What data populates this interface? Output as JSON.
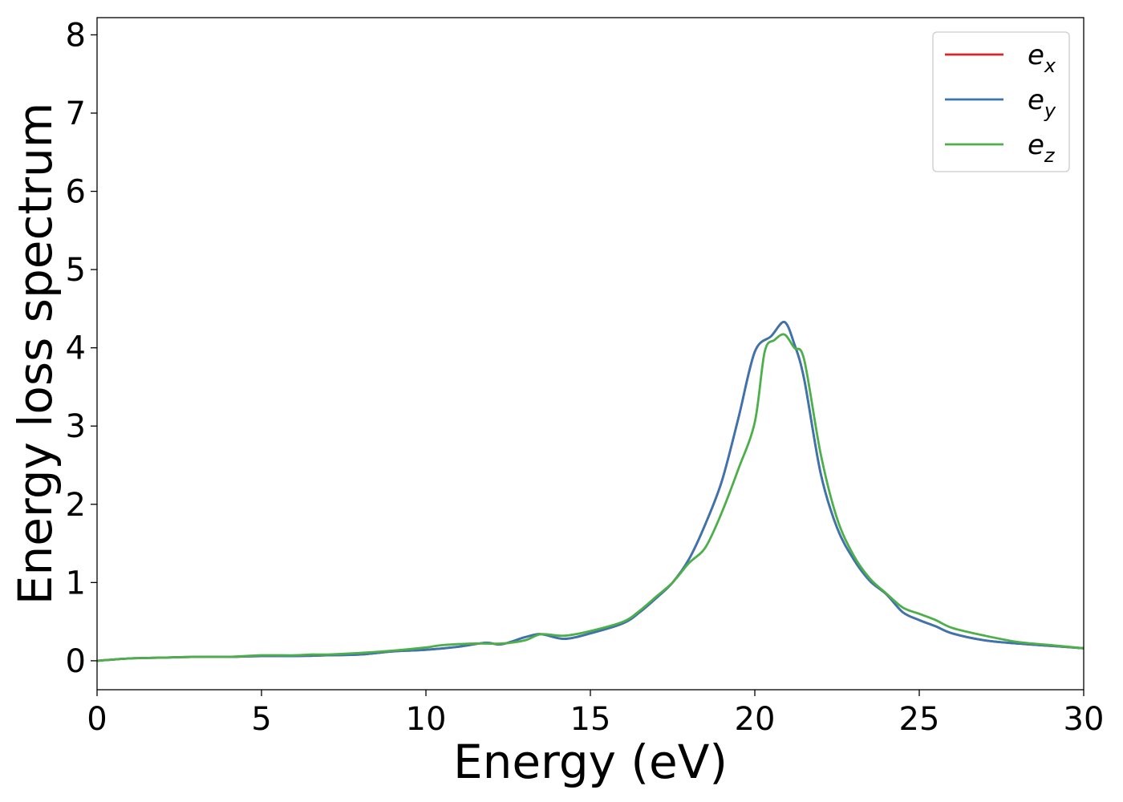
{
  "chart_data": {
    "type": "line",
    "title": "",
    "xlabel": "Energy (eV)",
    "ylabel": "Energy loss spectrum",
    "xlim": [
      0,
      30
    ],
    "ylim": [
      -0.37,
      8.22
    ],
    "xticks": [
      0,
      5,
      10,
      15,
      20,
      25,
      30
    ],
    "yticks": [
      0,
      1,
      2,
      3,
      4,
      5,
      6,
      7,
      8
    ],
    "xtick_labels": [
      "0",
      "5",
      "10",
      "15",
      "20",
      "25",
      "30"
    ],
    "ytick_labels": [
      "0",
      "1",
      "2",
      "3",
      "4",
      "5",
      "6",
      "7",
      "8"
    ],
    "grid": false,
    "legend_position": "top-right",
    "series": [
      {
        "name": "e",
        "subscript": "x",
        "color": "#d62728",
        "x": [
          0,
          1,
          2,
          3,
          4,
          5,
          6,
          7,
          8,
          9,
          10,
          11,
          11.8,
          12.3,
          13,
          13.5,
          14.2,
          15,
          16,
          16.5,
          17,
          17.5,
          18,
          18.5,
          19,
          19.5,
          20,
          20.5,
          20.9,
          21.2,
          21.5,
          22,
          22.5,
          23,
          23.5,
          24,
          24.5,
          25,
          25.5,
          26,
          27,
          28,
          29,
          30
        ],
        "values": [
          0.0,
          0.03,
          0.04,
          0.05,
          0.05,
          0.06,
          0.06,
          0.07,
          0.08,
          0.12,
          0.14,
          0.18,
          0.23,
          0.21,
          0.3,
          0.34,
          0.28,
          0.35,
          0.48,
          0.62,
          0.8,
          1.0,
          1.3,
          1.75,
          2.3,
          3.1,
          3.95,
          4.15,
          4.33,
          4.05,
          3.6,
          2.4,
          1.7,
          1.3,
          1.02,
          0.85,
          0.62,
          0.52,
          0.44,
          0.35,
          0.26,
          0.22,
          0.19,
          0.16
        ]
      },
      {
        "name": "e",
        "subscript": "y",
        "color": "#3b75af",
        "x": [
          0,
          1,
          2,
          3,
          4,
          5,
          6,
          7,
          8,
          9,
          10,
          11,
          11.8,
          12.3,
          13,
          13.5,
          14.2,
          15,
          16,
          16.5,
          17,
          17.5,
          18,
          18.5,
          19,
          19.5,
          20,
          20.5,
          20.9,
          21.2,
          21.5,
          22,
          22.5,
          23,
          23.5,
          24,
          24.5,
          25,
          25.5,
          26,
          27,
          28,
          29,
          30
        ],
        "values": [
          0.0,
          0.03,
          0.04,
          0.05,
          0.05,
          0.06,
          0.06,
          0.07,
          0.08,
          0.12,
          0.14,
          0.18,
          0.23,
          0.21,
          0.3,
          0.34,
          0.28,
          0.35,
          0.48,
          0.62,
          0.8,
          1.0,
          1.3,
          1.75,
          2.3,
          3.1,
          3.95,
          4.15,
          4.33,
          4.05,
          3.6,
          2.4,
          1.7,
          1.3,
          1.02,
          0.85,
          0.62,
          0.52,
          0.44,
          0.35,
          0.26,
          0.22,
          0.19,
          0.16
        ]
      },
      {
        "name": "e",
        "subscript": "z",
        "color": "#4daf4a",
        "x": [
          0,
          1,
          2,
          3,
          4,
          5,
          6,
          6.5,
          7,
          8,
          9,
          10,
          10.5,
          11.5,
          12.3,
          13,
          13.5,
          14.2,
          15,
          16,
          16.5,
          17,
          17.5,
          18,
          18.5,
          19,
          19.5,
          20,
          20.3,
          20.6,
          20.9,
          21.2,
          21.5,
          22,
          22.5,
          23,
          23.5,
          24,
          24.5,
          25,
          25.5,
          26,
          27,
          28,
          29,
          30
        ],
        "values": [
          0.0,
          0.03,
          0.04,
          0.05,
          0.05,
          0.07,
          0.07,
          0.08,
          0.08,
          0.1,
          0.13,
          0.17,
          0.2,
          0.22,
          0.22,
          0.26,
          0.34,
          0.32,
          0.38,
          0.5,
          0.64,
          0.82,
          1.0,
          1.25,
          1.45,
          1.9,
          2.45,
          3.05,
          3.95,
          4.1,
          4.17,
          4.0,
          3.85,
          2.65,
          1.82,
          1.35,
          1.05,
          0.86,
          0.68,
          0.6,
          0.52,
          0.42,
          0.32,
          0.24,
          0.2,
          0.16
        ]
      }
    ]
  }
}
